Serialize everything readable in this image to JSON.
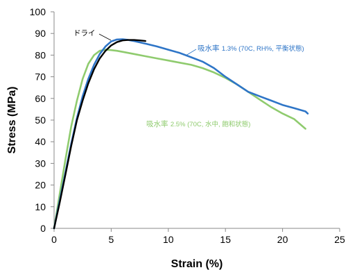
{
  "chart_data": {
    "type": "line",
    "xlabel": "Strain (%)",
    "ylabel": "Stress (MPa)",
    "xlim": [
      0,
      25
    ],
    "ylim": [
      0,
      100
    ],
    "xticks": [
      0,
      5,
      10,
      15,
      20,
      25
    ],
    "yticks": [
      0,
      10,
      20,
      30,
      40,
      50,
      60,
      70,
      80,
      90,
      100
    ],
    "grid": false,
    "legend": "none",
    "series": [
      {
        "name": "ドライ",
        "color": "#000000",
        "x": [
          0,
          0.5,
          1,
          1.5,
          2,
          2.5,
          3,
          3.5,
          4,
          4.5,
          5,
          5.5,
          6,
          6.5,
          7,
          7.5,
          8
        ],
        "y": [
          0,
          12,
          25,
          38,
          50,
          59,
          67,
          73.5,
          78.5,
          82,
          84.5,
          86,
          86.8,
          87,
          87,
          86.8,
          86.5
        ]
      },
      {
        "name": "吸水率 1.3% (70C, RH%, 平衡状態)",
        "color": "#2e75c7",
        "x": [
          0,
          0.5,
          1,
          1.5,
          2,
          2.5,
          3,
          3.5,
          4,
          4.5,
          5,
          5.5,
          6,
          6.5,
          7,
          8,
          9,
          10,
          11,
          12,
          13,
          14,
          15,
          16,
          17,
          18,
          19,
          20,
          21,
          22,
          22.2
        ],
        "y": [
          0,
          13,
          26,
          39,
          51,
          61,
          69,
          75.5,
          80.5,
          84,
          86.3,
          87.2,
          87.3,
          87,
          86.5,
          85.3,
          84,
          82.5,
          81,
          79,
          77,
          74,
          70,
          66.5,
          63,
          61,
          59,
          57,
          55.5,
          54,
          53
        ]
      },
      {
        "name": "吸水率 2.5% (70C, 水中, 飽和状態)",
        "color": "#8fcb6e",
        "x": [
          0,
          0.5,
          1,
          1.5,
          2,
          2.5,
          3,
          3.5,
          4,
          4.5,
          5,
          5.5,
          6,
          7,
          8,
          9,
          10,
          11,
          12,
          13,
          14,
          15,
          16,
          17,
          18,
          19,
          20,
          21,
          22
        ],
        "y": [
          0,
          16,
          32,
          47,
          59,
          69,
          76,
          80,
          82,
          82.5,
          82.3,
          82,
          81.5,
          80.5,
          79.5,
          78.5,
          77.5,
          76.5,
          75.5,
          74,
          72,
          69.5,
          66.5,
          63,
          59.5,
          56,
          53,
          50.5,
          46
        ]
      }
    ],
    "annotations": [
      {
        "text": "ドライ",
        "series": 0
      },
      {
        "text_prefix": "吸水率 ",
        "text_rest": "1.3% (70C, RH%, 平衡状態)",
        "series": 1
      },
      {
        "text_prefix": "吸水率 ",
        "text_rest": "2.5% (70C, 水中, 飽和状態)",
        "series": 2
      }
    ]
  }
}
